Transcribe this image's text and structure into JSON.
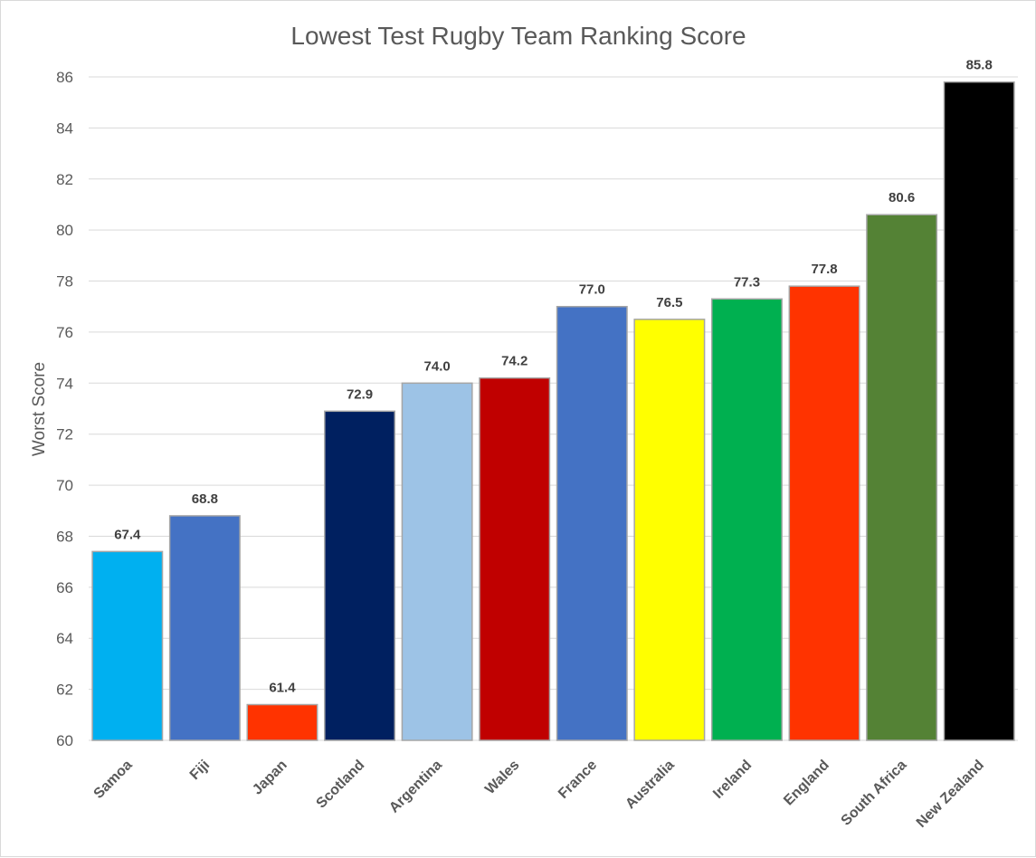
{
  "chart_data": {
    "type": "bar",
    "title": "Lowest Test Rugby Team Ranking Score",
    "ylabel": "Worst Score",
    "xlabel": "",
    "ylim": [
      60,
      86
    ],
    "yticks": [
      60,
      62,
      64,
      66,
      68,
      70,
      72,
      74,
      76,
      78,
      80,
      82,
      84,
      86
    ],
    "grid": true,
    "legend": "none",
    "categories": [
      "Samoa",
      "Fiji",
      "Japan",
      "Scotland",
      "Argentina",
      "Wales",
      "France",
      "Australia",
      "Ireland",
      "England",
      "South Africa",
      "New Zealand"
    ],
    "values": [
      67.4,
      68.8,
      61.4,
      72.9,
      74.0,
      74.2,
      77.0,
      76.5,
      77.3,
      77.8,
      80.6,
      85.8
    ],
    "data_labels": [
      "67.4",
      "68.8",
      "61.4",
      "72.9",
      "74.0",
      "74.2",
      "77.0",
      "76.5",
      "77.3",
      "77.8",
      "80.6",
      "85.8"
    ],
    "colors": [
      "#00b0f0",
      "#4472c4",
      "#ff3300",
      "#002060",
      "#9dc3e6",
      "#c00000",
      "#4472c4",
      "#ffff00",
      "#00b050",
      "#ff3300",
      "#548235",
      "#000000"
    ]
  }
}
